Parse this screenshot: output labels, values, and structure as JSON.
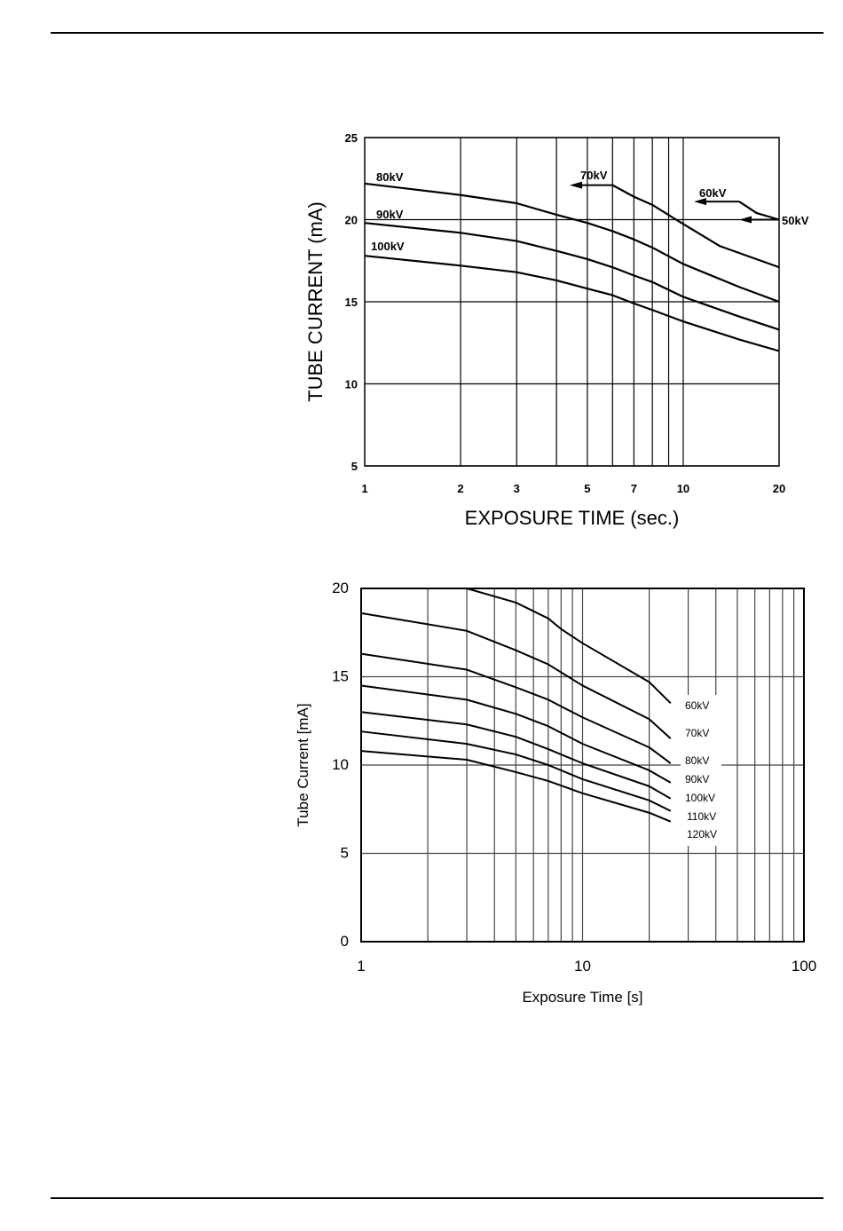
{
  "chart_data": [
    {
      "type": "line",
      "xscale": "log",
      "xlabel": "EXPOSURE TIME (sec.)",
      "ylabel": "TUBE CURRENT (mA)",
      "xlim": [
        1,
        20
      ],
      "ylim": [
        5,
        25
      ],
      "xticks": [
        1,
        2,
        3,
        5,
        7,
        10,
        20
      ],
      "xtick_labels": [
        "1",
        "2",
        "3",
        "5",
        "7",
        "10",
        "20"
      ],
      "xgrid": [
        2,
        3,
        4,
        5,
        6,
        7,
        8,
        9,
        10
      ],
      "yticks": [
        5,
        10,
        15,
        20,
        25
      ],
      "ytick_labels": [
        "5",
        "10",
        "15",
        "20",
        "25"
      ],
      "grid": true,
      "series": [
        {
          "name": "80kV",
          "x": [
            1,
            2,
            3,
            4,
            5,
            6,
            7,
            8,
            10,
            15,
            20
          ],
          "y": [
            22.2,
            21.5,
            21.0,
            20.3,
            19.8,
            19.3,
            18.8,
            18.3,
            17.3,
            15.9,
            15.0
          ]
        },
        {
          "name": "90kV",
          "x": [
            1,
            2,
            3,
            4,
            5,
            6,
            7,
            8,
            10,
            15,
            20
          ],
          "y": [
            19.8,
            19.2,
            18.7,
            18.1,
            17.6,
            17.1,
            16.6,
            16.2,
            15.3,
            14.1,
            13.3
          ]
        },
        {
          "name": "100kV",
          "x": [
            1,
            2,
            3,
            4,
            5,
            6,
            7,
            8,
            10,
            15,
            20
          ],
          "y": [
            17.8,
            17.2,
            16.8,
            16.3,
            15.8,
            15.4,
            14.9,
            14.5,
            13.8,
            12.7,
            12.0
          ]
        },
        {
          "name": "70kV",
          "x": [
            6,
            7,
            8,
            9.5,
            13,
            20
          ],
          "y": [
            22.1,
            21.4,
            20.9,
            20.0,
            18.4,
            17.1
          ]
        },
        {
          "name": "60kV",
          "x": [
            15,
            17,
            20
          ],
          "y": [
            21.1,
            20.4,
            20.0
          ]
        }
      ],
      "annotations": [
        {
          "text": "80kV"
        },
        {
          "text": "90kV"
        },
        {
          "text": "100kV"
        },
        {
          "text": "70kV",
          "arrow_at": 22.1
        },
        {
          "text": "60kV",
          "arrow_at": 21.1
        },
        {
          "text": "50kV",
          "arrow_at": 20.0
        }
      ]
    },
    {
      "type": "line",
      "xscale": "log",
      "xlabel": "Exposure Time [s]",
      "ylabel": "Tube Current [mA]",
      "xlim": [
        1,
        100
      ],
      "ylim": [
        0,
        20
      ],
      "xticks": [
        1,
        10,
        100
      ],
      "xtick_labels": [
        "1",
        "10",
        "100"
      ],
      "yticks": [
        0,
        5,
        10,
        15,
        20
      ],
      "ytick_labels": [
        "0",
        "5",
        "10",
        "15",
        "20"
      ],
      "grid": true,
      "series": [
        {
          "name": "60kV",
          "x": [
            3,
            5,
            7,
            8,
            10,
            20,
            25
          ],
          "y": [
            20.0,
            19.2,
            18.3,
            17.7,
            16.9,
            14.7,
            13.5
          ]
        },
        {
          "name": "70kV",
          "x": [
            1,
            3,
            5,
            7,
            10,
            20,
            25
          ],
          "y": [
            18.6,
            17.6,
            16.5,
            15.7,
            14.5,
            12.6,
            11.5
          ]
        },
        {
          "name": "80kV",
          "x": [
            1,
            3,
            5,
            7,
            10,
            20,
            25
          ],
          "y": [
            16.3,
            15.4,
            14.4,
            13.7,
            12.7,
            11.0,
            10.1
          ]
        },
        {
          "name": "90kV",
          "x": [
            1,
            3,
            5,
            7,
            10,
            20,
            25
          ],
          "y": [
            14.5,
            13.7,
            12.9,
            12.2,
            11.2,
            9.7,
            9.0
          ]
        },
        {
          "name": "100kV",
          "x": [
            1,
            3,
            5,
            7,
            10,
            20,
            25
          ],
          "y": [
            13.0,
            12.3,
            11.6,
            10.9,
            10.1,
            8.8,
            8.1
          ]
        },
        {
          "name": "110kV",
          "x": [
            1,
            3,
            5,
            7,
            10,
            20,
            25
          ],
          "y": [
            11.9,
            11.2,
            10.6,
            10.0,
            9.2,
            8.0,
            7.4
          ]
        },
        {
          "name": "120kV",
          "x": [
            1,
            3,
            5,
            7,
            10,
            20,
            25
          ],
          "y": [
            10.8,
            10.3,
            9.6,
            9.1,
            8.4,
            7.3,
            6.8
          ]
        }
      ]
    }
  ]
}
